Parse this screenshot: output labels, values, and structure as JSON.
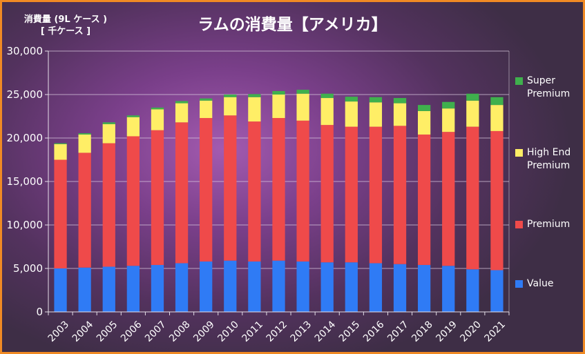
{
  "title": "ラムの消費量【アメリカ】",
  "y_unit_line1": "消費量 (9L ケース )",
  "y_unit_line2": "[ 千ケース ]",
  "colors": {
    "Value": "#2f7bf5",
    "Premium": "#ef4a4a",
    "High End Premium": "#ffee66",
    "Super Premium": "#3fb04d"
  },
  "chart_data": {
    "type": "bar",
    "stacked": true,
    "title": "ラムの消費量【アメリカ】",
    "ylabel": "消費量 (9L ケース ) [ 千ケース ]",
    "xlabel": "",
    "ylim": [
      0,
      30000
    ],
    "yticks": [
      0,
      5000,
      10000,
      15000,
      20000,
      25000,
      30000
    ],
    "ytick_labels": [
      "0",
      "5,000",
      "10,000",
      "15,000",
      "20,000",
      "25,000",
      "30,000"
    ],
    "legend_position": "right",
    "grid": true,
    "categories": [
      "2003",
      "2004",
      "2005",
      "2006",
      "2007",
      "2008",
      "2009",
      "2010",
      "2011",
      "2012",
      "2013",
      "2014",
      "2015",
      "2016",
      "2017",
      "2018",
      "2019",
      "2020",
      "2021"
    ],
    "series": [
      {
        "name": "Value",
        "values": [
          5000,
          5100,
          5200,
          5300,
          5400,
          5600,
          5800,
          5900,
          5800,
          5900,
          5800,
          5700,
          5700,
          5600,
          5500,
          5400,
          5300,
          4900,
          4800
        ]
      },
      {
        "name": "Premium",
        "values": [
          12500,
          13200,
          14200,
          14900,
          15500,
          16200,
          16500,
          16700,
          16100,
          16400,
          16200,
          15800,
          15600,
          15700,
          15900,
          15000,
          15400,
          16400,
          16000
        ]
      },
      {
        "name": "High End Premium",
        "values": [
          1800,
          2100,
          2200,
          2200,
          2400,
          2200,
          2000,
          2100,
          2800,
          2700,
          3100,
          3100,
          2900,
          2800,
          2600,
          2700,
          2700,
          3000,
          3000
        ]
      },
      {
        "name": "Super Premium",
        "values": [
          100,
          150,
          200,
          200,
          200,
          250,
          250,
          300,
          350,
          400,
          450,
          500,
          550,
          600,
          600,
          700,
          750,
          800,
          900
        ]
      }
    ]
  }
}
